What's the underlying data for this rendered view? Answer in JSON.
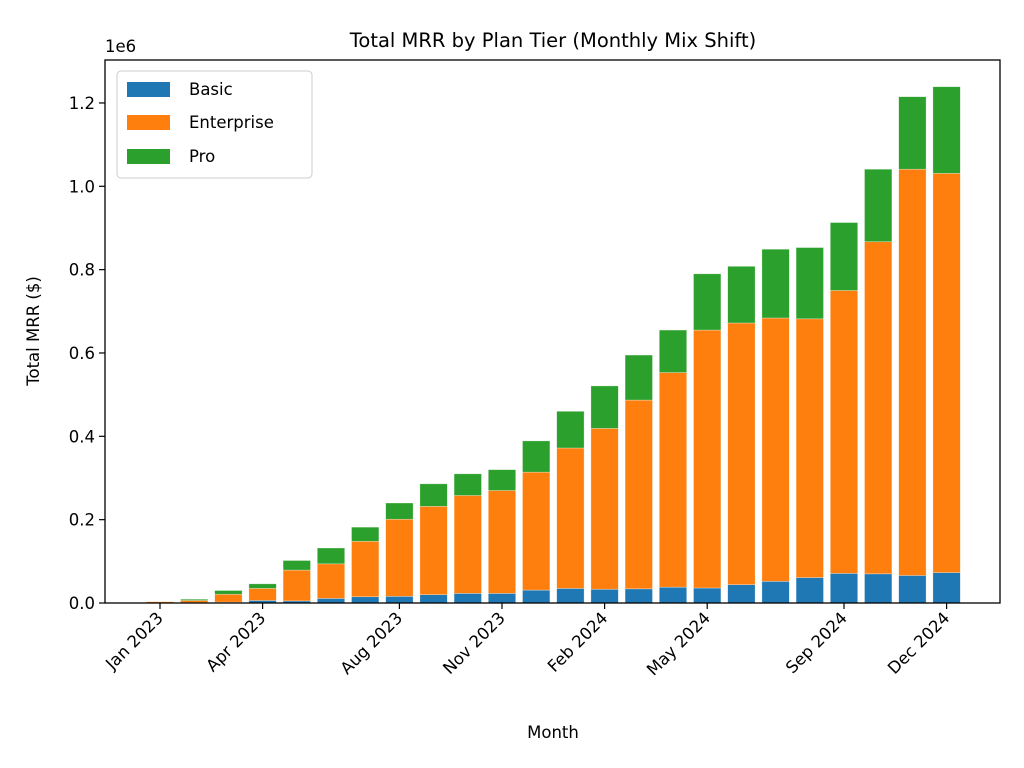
{
  "chart_data": {
    "type": "bar",
    "stacked": true,
    "title": "Total MRR by Plan Tier (Monthly Mix Shift)",
    "xlabel": "Month",
    "ylabel": "Total MRR ($)",
    "y_offset_label": "1e6",
    "y_scale": 1000000,
    "ylim": [
      0,
      1.3
    ],
    "yticks": [
      0.0,
      0.2,
      0.4,
      0.6,
      0.8,
      1.0,
      1.2
    ],
    "ytick_labels": [
      "0.0",
      "0.2",
      "0.4",
      "0.6",
      "0.8",
      "1.0",
      "1.2"
    ],
    "grid": false,
    "legend_position": "top-left",
    "categories": [
      "Jan 2023",
      "Feb 2023",
      "Mar 2023",
      "Apr 2023",
      "May 2023",
      "Jun 2023",
      "Jul 2023",
      "Aug 2023",
      "Sep 2023",
      "Oct 2023",
      "Nov 2023",
      "Dec 2023",
      "Jan 2024",
      "Feb 2024",
      "Mar 2024",
      "Apr 2024",
      "May 2024",
      "Jun 2024",
      "Jul 2024",
      "Aug 2024",
      "Sep 2024",
      "Oct 2024",
      "Nov 2024",
      "Dec 2024"
    ],
    "xtick_labels": [
      {
        "label": "Jan 2023",
        "index": 0
      },
      {
        "label": "Apr 2023",
        "index": 3
      },
      {
        "label": "Aug 2023",
        "index": 7
      },
      {
        "label": "Nov 2023",
        "index": 10
      },
      {
        "label": "Feb 2024",
        "index": 13
      },
      {
        "label": "May 2024",
        "index": 16
      },
      {
        "label": "Sep 2024",
        "index": 20
      },
      {
        "label": "Dec 2024",
        "index": 23
      }
    ],
    "series": [
      {
        "name": "Basic",
        "color": "#1f77b4",
        "values": [
          0.0,
          0.001,
          0.002,
          0.006,
          0.005,
          0.011,
          0.015,
          0.016,
          0.02,
          0.023,
          0.023,
          0.031,
          0.035,
          0.033,
          0.034,
          0.038,
          0.036,
          0.044,
          0.052,
          0.061,
          0.071,
          0.07,
          0.066,
          0.073
        ]
      },
      {
        "name": "Enterprise",
        "color": "#ff7f0e",
        "values": [
          0.003,
          0.005,
          0.019,
          0.029,
          0.074,
          0.083,
          0.133,
          0.185,
          0.212,
          0.235,
          0.247,
          0.283,
          0.337,
          0.386,
          0.453,
          0.515,
          0.619,
          0.628,
          0.632,
          0.621,
          0.679,
          0.797,
          0.975,
          0.958
        ]
      },
      {
        "name": "Pro",
        "color": "#2ca02c",
        "values": [
          0.0,
          0.003,
          0.009,
          0.011,
          0.023,
          0.038,
          0.034,
          0.039,
          0.054,
          0.052,
          0.05,
          0.075,
          0.088,
          0.102,
          0.108,
          0.102,
          0.135,
          0.136,
          0.165,
          0.171,
          0.163,
          0.174,
          0.174,
          0.208
        ]
      }
    ]
  }
}
